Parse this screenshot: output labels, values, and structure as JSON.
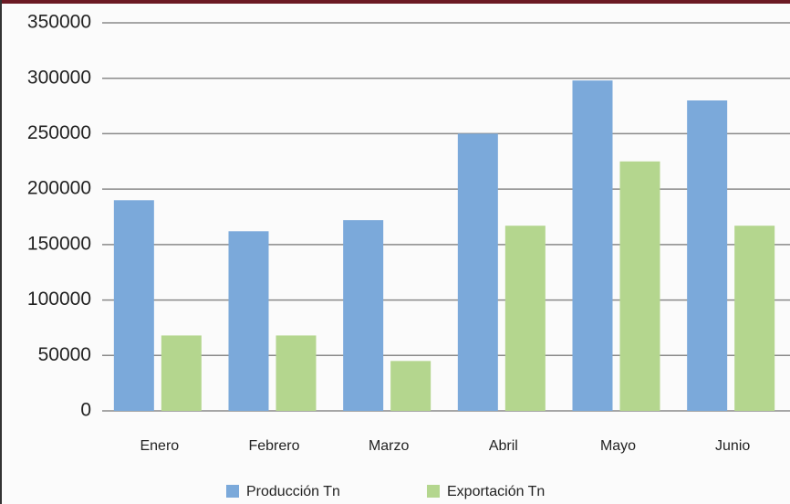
{
  "chart_data": {
    "type": "bar",
    "categories": [
      "Enero",
      "Febrero",
      "Marzo",
      "Abril",
      "Mayo",
      "Junio"
    ],
    "series": [
      {
        "name": "Producción Tn",
        "color": "#7ba9da",
        "values": [
          190000,
          162000,
          172000,
          250000,
          298000,
          280000
        ]
      },
      {
        "name": "Exportación Tn",
        "color": "#b4d68e",
        "values": [
          68000,
          68000,
          45000,
          167000,
          225000,
          167000
        ]
      }
    ],
    "ylim": [
      0,
      350000
    ],
    "yticks": [
      0,
      50000,
      100000,
      150000,
      200000,
      250000,
      300000,
      350000
    ],
    "grid": true,
    "legend": "bottom"
  }
}
